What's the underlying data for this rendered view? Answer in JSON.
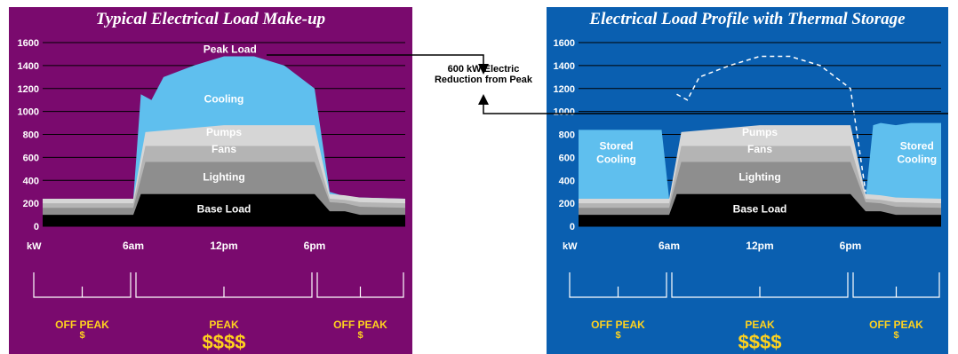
{
  "center_note": {
    "line1": "600 kW Electric",
    "line2": "Reduction from Peak"
  },
  "colors": {
    "left_bg": "#7a0a6e",
    "right_bg": "#0a5fb0",
    "base_load": "#000000",
    "lighting": "#8e8e8e",
    "fans": "#b4b4b4",
    "pumps": "#d6d6d6",
    "cooling": "#5fbfee",
    "stored_cooling": "#5fbfee",
    "gridline": "#000000",
    "axis_text": "#ffffff",
    "period_text": "#ffd21e"
  },
  "chart_data": [
    {
      "type": "area",
      "title": "Typical Electrical Load Make-up",
      "ylabel": "kW",
      "ylim": [
        0,
        1600
      ],
      "xlim": [
        0,
        24
      ],
      "yticks": [
        0,
        200,
        400,
        600,
        800,
        1000,
        1200,
        1400,
        1600
      ],
      "xtick_labels": [
        {
          "x": 6,
          "label": "6am"
        },
        {
          "x": 12,
          "label": "12pm"
        },
        {
          "x": 18,
          "label": "6pm"
        }
      ],
      "grid": true,
      "series": [
        {
          "name": "Base Load",
          "x": [
            0,
            6,
            6.5,
            12,
            18,
            19,
            20,
            21,
            24
          ],
          "values": [
            100,
            100,
            280,
            280,
            280,
            130,
            130,
            100,
            100
          ]
        },
        {
          "name": "Lighting",
          "x": [
            0,
            6,
            6.8,
            12,
            18,
            19,
            20,
            21,
            24
          ],
          "values": [
            160,
            160,
            560,
            560,
            560,
            210,
            200,
            170,
            160
          ]
        },
        {
          "name": "Fans",
          "x": [
            0,
            6,
            6.8,
            12,
            18,
            19,
            20,
            21,
            24
          ],
          "values": [
            200,
            200,
            700,
            700,
            700,
            240,
            230,
            210,
            200
          ]
        },
        {
          "name": "Pumps",
          "x": [
            0,
            6,
            6.8,
            12,
            18,
            19,
            20,
            21,
            24
          ],
          "values": [
            240,
            240,
            820,
            880,
            880,
            280,
            270,
            250,
            240
          ]
        },
        {
          "name": "Cooling",
          "x": [
            0,
            6,
            6.5,
            7.2,
            8,
            10,
            12,
            14,
            16,
            18,
            19,
            20,
            21,
            24
          ],
          "values": [
            240,
            240,
            1150,
            1100,
            1300,
            1400,
            1480,
            1480,
            1400,
            1200,
            300,
            260,
            250,
            240
          ]
        }
      ],
      "annotations": [
        "Peak Load"
      ],
      "periods": [
        {
          "from": 0,
          "to": 6,
          "label": "OFF PEAK",
          "cost": "$"
        },
        {
          "from": 6,
          "to": 18,
          "label": "PEAK",
          "cost": "$$$$"
        },
        {
          "from": 18,
          "to": 24,
          "label": "OFF PEAK",
          "cost": "$"
        }
      ]
    },
    {
      "type": "area",
      "title": "Electrical Load Profile with Thermal Storage",
      "ylabel": "kW",
      "ylim": [
        0,
        1600
      ],
      "xlim": [
        0,
        24
      ],
      "yticks": [
        0,
        200,
        400,
        600,
        800,
        1000,
        1200,
        1400,
        1600
      ],
      "xtick_labels": [
        {
          "x": 6,
          "label": "6am"
        },
        {
          "x": 12,
          "label": "12pm"
        },
        {
          "x": 18,
          "label": "6pm"
        }
      ],
      "grid": true,
      "series": [
        {
          "name": "Base Load",
          "x": [
            0,
            6,
            6.5,
            12,
            18,
            19,
            20,
            21,
            24
          ],
          "values": [
            100,
            100,
            280,
            280,
            280,
            130,
            130,
            100,
            100
          ]
        },
        {
          "name": "Lighting",
          "x": [
            0,
            6,
            6.8,
            12,
            18,
            19,
            20,
            21,
            24
          ],
          "values": [
            160,
            160,
            560,
            560,
            560,
            210,
            200,
            170,
            160
          ]
        },
        {
          "name": "Fans",
          "x": [
            0,
            6,
            6.8,
            12,
            18,
            19,
            20,
            21,
            24
          ],
          "values": [
            200,
            200,
            700,
            700,
            700,
            240,
            230,
            210,
            200
          ]
        },
        {
          "name": "Pumps",
          "x": [
            0,
            6,
            6.8,
            12,
            18,
            19,
            20,
            21,
            24
          ],
          "values": [
            240,
            240,
            820,
            880,
            880,
            280,
            270,
            250,
            240
          ]
        },
        {
          "name": "Stored Cooling",
          "x": [
            0,
            5.5,
            6,
            19,
            19.5,
            20,
            21,
            22,
            24
          ],
          "values": [
            840,
            840,
            240,
            240,
            880,
            900,
            880,
            900,
            900
          ]
        }
      ],
      "previous_peak_dashed": {
        "x": [
          6.5,
          7.2,
          8,
          10,
          12,
          14,
          16,
          18,
          19
        ],
        "values": [
          1150,
          1100,
          1300,
          1400,
          1480,
          1480,
          1400,
          1200,
          300
        ]
      },
      "periods": [
        {
          "from": 0,
          "to": 6,
          "label": "OFF PEAK",
          "cost": "$"
        },
        {
          "from": 6,
          "to": 18,
          "label": "PEAK",
          "cost": "$$$$"
        },
        {
          "from": 18,
          "to": 24,
          "label": "OFF PEAK",
          "cost": "$"
        }
      ]
    }
  ]
}
